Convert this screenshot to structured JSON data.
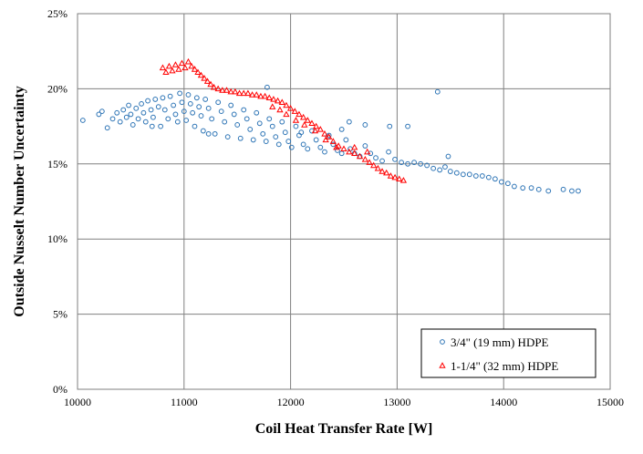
{
  "chart_data": {
    "type": "scatter",
    "xlabel": "Coil Heat Transfer Rate [W]",
    "ylabel": "Outside Nusselt Number Uncertainty",
    "xlim": [
      10000,
      15000
    ],
    "ylim": [
      0,
      0.25
    ],
    "x_ticks": [
      "10000",
      "11000",
      "12000",
      "13000",
      "14000",
      "15000"
    ],
    "y_ticks": [
      "0%",
      "5%",
      "10%",
      "15%",
      "20%",
      "25%"
    ],
    "grid": true,
    "legend_position": "bottom-right",
    "series": [
      {
        "name": "3/4\" (19 mm) HDPE",
        "color": "#2e75b6",
        "marker": "circle",
        "points": [
          [
            10050,
            0.179
          ],
          [
            10200,
            0.183
          ],
          [
            10230,
            0.185
          ],
          [
            10280,
            0.174
          ],
          [
            10330,
            0.18
          ],
          [
            10370,
            0.184
          ],
          [
            10400,
            0.178
          ],
          [
            10430,
            0.186
          ],
          [
            10460,
            0.181
          ],
          [
            10480,
            0.189
          ],
          [
            10500,
            0.183
          ],
          [
            10520,
            0.176
          ],
          [
            10550,
            0.187
          ],
          [
            10570,
            0.18
          ],
          [
            10600,
            0.19
          ],
          [
            10620,
            0.184
          ],
          [
            10640,
            0.178
          ],
          [
            10660,
            0.192
          ],
          [
            10690,
            0.186
          ],
          [
            10710,
            0.181
          ],
          [
            10730,
            0.193
          ],
          [
            10760,
            0.188
          ],
          [
            10780,
            0.175
          ],
          [
            10800,
            0.194
          ],
          [
            10820,
            0.186
          ],
          [
            10850,
            0.18
          ],
          [
            10870,
            0.195
          ],
          [
            10900,
            0.189
          ],
          [
            10920,
            0.183
          ],
          [
            10940,
            0.178
          ],
          [
            10960,
            0.197
          ],
          [
            10980,
            0.191
          ],
          [
            11000,
            0.185
          ],
          [
            11020,
            0.179
          ],
          [
            11040,
            0.196
          ],
          [
            11060,
            0.19
          ],
          [
            11080,
            0.184
          ],
          [
            11100,
            0.175
          ],
          [
            11120,
            0.194
          ],
          [
            11140,
            0.188
          ],
          [
            11160,
            0.182
          ],
          [
            11180,
            0.172
          ],
          [
            11200,
            0.193
          ],
          [
            11230,
            0.187
          ],
          [
            11260,
            0.18
          ],
          [
            11290,
            0.17
          ],
          [
            11320,
            0.191
          ],
          [
            11350,
            0.185
          ],
          [
            11380,
            0.178
          ],
          [
            11410,
            0.168
          ],
          [
            11440,
            0.189
          ],
          [
            11470,
            0.183
          ],
          [
            11500,
            0.176
          ],
          [
            11530,
            0.167
          ],
          [
            11560,
            0.186
          ],
          [
            11590,
            0.18
          ],
          [
            11620,
            0.173
          ],
          [
            11650,
            0.166
          ],
          [
            11680,
            0.184
          ],
          [
            11710,
            0.177
          ],
          [
            11740,
            0.17
          ],
          [
            11770,
            0.165
          ],
          [
            11800,
            0.18
          ],
          [
            11830,
            0.175
          ],
          [
            11860,
            0.168
          ],
          [
            11890,
            0.163
          ],
          [
            11920,
            0.178
          ],
          [
            11950,
            0.171
          ],
          [
            11980,
            0.165
          ],
          [
            12010,
            0.161
          ],
          [
            12050,
            0.175
          ],
          [
            12080,
            0.169
          ],
          [
            12120,
            0.163
          ],
          [
            12160,
            0.16
          ],
          [
            12200,
            0.172
          ],
          [
            12240,
            0.166
          ],
          [
            12280,
            0.161
          ],
          [
            12320,
            0.158
          ],
          [
            12360,
            0.169
          ],
          [
            12400,
            0.163
          ],
          [
            12440,
            0.159
          ],
          [
            12480,
            0.157
          ],
          [
            12520,
            0.166
          ],
          [
            12560,
            0.16
          ],
          [
            12600,
            0.157
          ],
          [
            12650,
            0.155
          ],
          [
            12700,
            0.162
          ],
          [
            12750,
            0.157
          ],
          [
            12800,
            0.154
          ],
          [
            12860,
            0.152
          ],
          [
            12920,
            0.158
          ],
          [
            12980,
            0.153
          ],
          [
            13040,
            0.151
          ],
          [
            13100,
            0.15
          ],
          [
            13160,
            0.151
          ],
          [
            13220,
            0.15
          ],
          [
            13280,
            0.149
          ],
          [
            13340,
            0.147
          ],
          [
            13400,
            0.146
          ],
          [
            13450,
            0.148
          ],
          [
            13500,
            0.145
          ],
          [
            13560,
            0.144
          ],
          [
            13620,
            0.143
          ],
          [
            13680,
            0.143
          ],
          [
            13740,
            0.142
          ],
          [
            13800,
            0.142
          ],
          [
            13860,
            0.141
          ],
          [
            13920,
            0.14
          ],
          [
            13980,
            0.138
          ],
          [
            14040,
            0.137
          ],
          [
            14100,
            0.135
          ],
          [
            14180,
            0.134
          ],
          [
            14260,
            0.134
          ],
          [
            14330,
            0.133
          ],
          [
            14420,
            0.132
          ],
          [
            14560,
            0.133
          ],
          [
            14640,
            0.132
          ],
          [
            14700,
            0.132
          ],
          [
            11780,
            0.201
          ],
          [
            13380,
            0.198
          ],
          [
            12550,
            0.178
          ],
          [
            12700,
            0.176
          ],
          [
            12930,
            0.175
          ],
          [
            13100,
            0.175
          ],
          [
            12480,
            0.173
          ],
          [
            13480,
            0.155
          ],
          [
            12100,
            0.171
          ],
          [
            11230,
            0.17
          ],
          [
            10700,
            0.175
          ],
          [
            12350,
            0.168
          ]
        ]
      },
      {
        "name": "1-1/4\" (32 mm) HDPE",
        "color": "#ff0000",
        "marker": "triangle",
        "points": [
          [
            10800,
            0.214
          ],
          [
            10830,
            0.211
          ],
          [
            10860,
            0.215
          ],
          [
            10890,
            0.212
          ],
          [
            10920,
            0.216
          ],
          [
            10950,
            0.213
          ],
          [
            10980,
            0.217
          ],
          [
            11010,
            0.214
          ],
          [
            11040,
            0.218
          ],
          [
            11070,
            0.215
          ],
          [
            11100,
            0.213
          ],
          [
            11130,
            0.211
          ],
          [
            11160,
            0.209
          ],
          [
            11190,
            0.207
          ],
          [
            11220,
            0.205
          ],
          [
            11250,
            0.203
          ],
          [
            11280,
            0.201
          ],
          [
            11320,
            0.2
          ],
          [
            11360,
            0.199
          ],
          [
            11400,
            0.199
          ],
          [
            11440,
            0.198
          ],
          [
            11480,
            0.198
          ],
          [
            11520,
            0.197
          ],
          [
            11560,
            0.197
          ],
          [
            11600,
            0.197
          ],
          [
            11640,
            0.196
          ],
          [
            11680,
            0.196
          ],
          [
            11720,
            0.195
          ],
          [
            11760,
            0.195
          ],
          [
            11800,
            0.194
          ],
          [
            11840,
            0.193
          ],
          [
            11880,
            0.192
          ],
          [
            11920,
            0.191
          ],
          [
            11960,
            0.189
          ],
          [
            12000,
            0.187
          ],
          [
            12040,
            0.185
          ],
          [
            12080,
            0.183
          ],
          [
            12120,
            0.181
          ],
          [
            12160,
            0.179
          ],
          [
            12200,
            0.177
          ],
          [
            12240,
            0.175
          ],
          [
            12280,
            0.173
          ],
          [
            12320,
            0.17
          ],
          [
            12360,
            0.168
          ],
          [
            12400,
            0.165
          ],
          [
            12450,
            0.162
          ],
          [
            12500,
            0.16
          ],
          [
            12550,
            0.158
          ],
          [
            12600,
            0.157
          ],
          [
            12650,
            0.155
          ],
          [
            12700,
            0.153
          ],
          [
            12740,
            0.151
          ],
          [
            12780,
            0.149
          ],
          [
            12820,
            0.147
          ],
          [
            12860,
            0.145
          ],
          [
            12900,
            0.144
          ],
          [
            12940,
            0.142
          ],
          [
            12980,
            0.141
          ],
          [
            13020,
            0.14
          ],
          [
            13060,
            0.139
          ],
          [
            11830,
            0.188
          ],
          [
            11900,
            0.186
          ],
          [
            11960,
            0.183
          ],
          [
            12050,
            0.179
          ],
          [
            12130,
            0.176
          ],
          [
            12230,
            0.172
          ],
          [
            12330,
            0.166
          ],
          [
            12430,
            0.161
          ],
          [
            12600,
            0.161
          ],
          [
            12720,
            0.158
          ]
        ]
      }
    ]
  }
}
